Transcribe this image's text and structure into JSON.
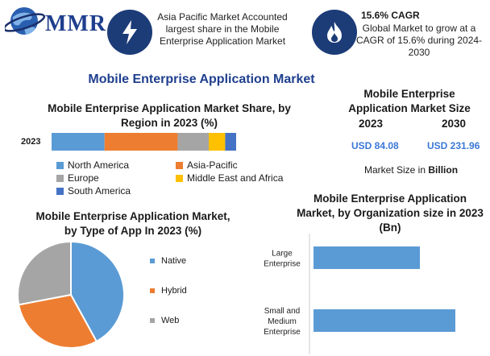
{
  "header": {
    "logo_text": "MMR",
    "info1": "Asia Pacific Market Accounted largest share in the Mobile Enterprise Application Market",
    "info2_title": "15.6% CAGR",
    "info2_text": "Global Market to grow at a CAGR of 15.6% during 2024-2030"
  },
  "icons": {
    "info1": "lightning-icon",
    "info2": "flame-icon",
    "logo": "globe-icon"
  },
  "colors": {
    "blue": "#5b9bd5",
    "orange": "#ed7d31",
    "gray": "#a5a5a5",
    "yellow": "#ffc000",
    "dark_blue": "#4472c4",
    "navy": "#1c3c78",
    "title_blue": "#1f3f8e"
  },
  "main_title": "Mobile Enterprise Application Market",
  "market_size": {
    "title": "Mobile Enterprise Application Market Size",
    "years": [
      "2023",
      "2030"
    ],
    "values": [
      "USD 84.08",
      "USD 231.96"
    ],
    "unit_note": "Market Size in ",
    "unit": "Billion"
  },
  "chart_data": [
    {
      "type": "bar",
      "orientation": "horizontal-stacked",
      "title": "Mobile Enterprise Application Market Share, by Region in 2023 (%)",
      "categories": [
        "2023"
      ],
      "series": [
        {
          "name": "North America",
          "values": [
            29
          ]
        },
        {
          "name": "Asia-Pacific",
          "values": [
            40
          ]
        },
        {
          "name": "Europe",
          "values": [
            17
          ]
        },
        {
          "name": "Middle East and Africa",
          "values": [
            9
          ]
        },
        {
          "name": "South America",
          "values": [
            6
          ]
        }
      ],
      "legend_placement": "bottom"
    },
    {
      "type": "pie",
      "title": "Mobile Enterprise Application Market, by Type of App In 2023 (%)",
      "categories": [
        "Native",
        "Hybrid",
        "Web"
      ],
      "values": [
        42,
        30,
        28
      ],
      "legend_placement": "right"
    },
    {
      "type": "bar",
      "orientation": "horizontal",
      "title": "Mobile Enterprise Application Market, by Organization size in 2023 (Bn)",
      "categories": [
        "Large Enterprise",
        "Small and Medium Enterprise"
      ],
      "category_lines": [
        [
          "Large",
          "Enterprise"
        ],
        [
          "Small and",
          "Medium",
          "Enterprise"
        ]
      ],
      "values": [
        36,
        48
      ]
    }
  ]
}
